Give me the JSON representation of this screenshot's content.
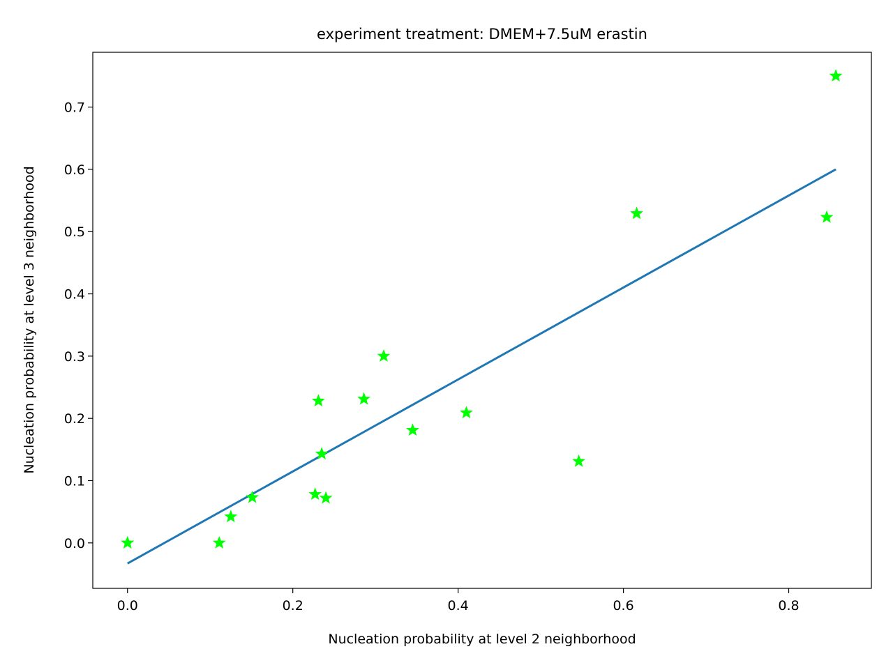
{
  "chart_data": {
    "type": "scatter",
    "title": "experiment treatment: DMEM+7.5uM erastin",
    "xlabel": "Nucleation probability at level 2 neighborhood",
    "ylabel": "Nucleation probability at level 3 neighborhood",
    "xlim": [
      -0.042,
      0.9
    ],
    "ylim": [
      -0.073,
      0.788
    ],
    "xticks": [
      0.0,
      0.2,
      0.4,
      0.6,
      0.8
    ],
    "xtick_labels": [
      "0.0",
      "0.2",
      "0.4",
      "0.6",
      "0.8"
    ],
    "yticks": [
      0.0,
      0.1,
      0.2,
      0.3,
      0.4,
      0.5,
      0.6,
      0.7
    ],
    "ytick_labels": [
      "0.0",
      "0.1",
      "0.2",
      "0.3",
      "0.4",
      "0.5",
      "0.6",
      "0.7"
    ],
    "grid": false,
    "series": [
      {
        "kind": "scatter",
        "marker": "star",
        "color": "#00ff00",
        "points": [
          {
            "x": 0.0,
            "y": 0.0
          },
          {
            "x": 0.0,
            "y": 0.0
          },
          {
            "x": 0.111,
            "y": 0.0
          },
          {
            "x": 0.125,
            "y": 0.042
          },
          {
            "x": 0.151,
            "y": 0.073
          },
          {
            "x": 0.227,
            "y": 0.078
          },
          {
            "x": 0.231,
            "y": 0.228
          },
          {
            "x": 0.235,
            "y": 0.143
          },
          {
            "x": 0.24,
            "y": 0.072
          },
          {
            "x": 0.286,
            "y": 0.231
          },
          {
            "x": 0.31,
            "y": 0.3
          },
          {
            "x": 0.345,
            "y": 0.181
          },
          {
            "x": 0.41,
            "y": 0.209
          },
          {
            "x": 0.546,
            "y": 0.131
          },
          {
            "x": 0.616,
            "y": 0.529
          },
          {
            "x": 0.846,
            "y": 0.523
          },
          {
            "x": 0.857,
            "y": 0.75
          }
        ]
      },
      {
        "kind": "line",
        "color": "#1f77b4",
        "points": [
          {
            "x": 0.0,
            "y": -0.033
          },
          {
            "x": 0.857,
            "y": 0.6
          }
        ]
      }
    ]
  }
}
